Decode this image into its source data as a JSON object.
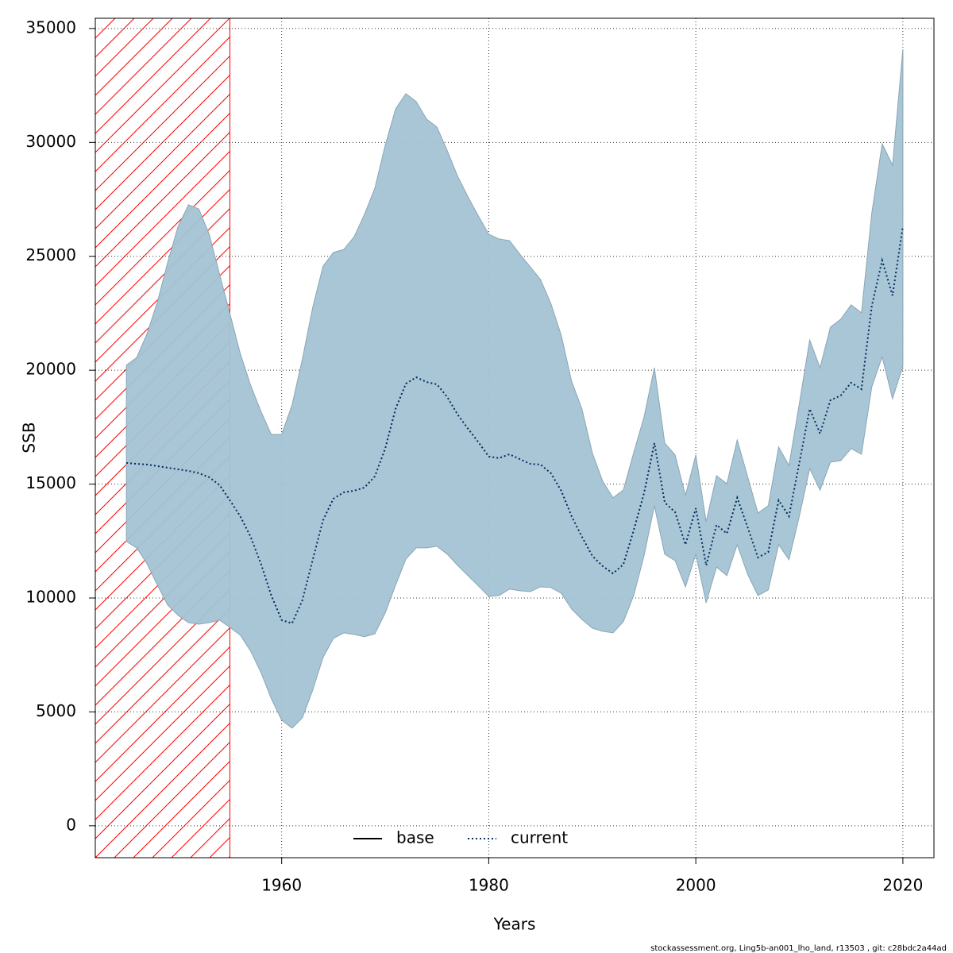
{
  "chart_data": {
    "type": "band-line",
    "xlabel": "Years",
    "ylabel": "SSB",
    "footer": "stockassessment.org, Ling5b-an001_lho_land, r13503 , git: c28bdc2a44ad",
    "x": [
      1945,
      1946,
      1947,
      1948,
      1949,
      1950,
      1951,
      1952,
      1953,
      1954,
      1955,
      1956,
      1957,
      1958,
      1959,
      1960,
      1961,
      1962,
      1963,
      1964,
      1965,
      1966,
      1967,
      1968,
      1969,
      1970,
      1971,
      1972,
      1973,
      1974,
      1975,
      1976,
      1977,
      1978,
      1979,
      1980,
      1981,
      1982,
      1983,
      1984,
      1985,
      1986,
      1987,
      1988,
      1989,
      1990,
      1991,
      1992,
      1993,
      1994,
      1995,
      1996,
      1997,
      1998,
      1999,
      2000,
      2001,
      2002,
      2003,
      2004,
      2005,
      2006,
      2007,
      2008,
      2009,
      2010,
      2011,
      2012,
      2013,
      2014,
      2015,
      2016,
      2017,
      2018,
      2019,
      2020
    ],
    "series": [
      {
        "name": "current",
        "color": "#002b5c",
        "dash": "dotted",
        "values": [
          15930,
          15890,
          15860,
          15790,
          15720,
          15650,
          15580,
          15480,
          15300,
          14960,
          14290,
          13590,
          12690,
          11500,
          10110,
          9030,
          8890,
          9900,
          11680,
          13420,
          14360,
          14640,
          14710,
          14850,
          15340,
          16560,
          18300,
          19410,
          19690,
          19480,
          19380,
          18820,
          18050,
          17430,
          16840,
          16210,
          16140,
          16310,
          16100,
          15890,
          15860,
          15480,
          14710,
          13590,
          12690,
          11850,
          11400,
          11080,
          11470,
          12970,
          14600,
          16800,
          14190,
          13770,
          12340,
          13940,
          11430,
          13210,
          12830,
          14400,
          13110,
          11780,
          12020,
          14290,
          13590,
          15930,
          18300,
          17220,
          18680,
          18890,
          19450,
          19170,
          22830,
          24820,
          23280,
          26320
        ]
      }
    ],
    "band": {
      "color": "#a3c3d4",
      "upper": [
        20220,
        20560,
        21610,
        23000,
        24750,
        26320,
        27260,
        27080,
        25970,
        24220,
        22480,
        20740,
        19340,
        18190,
        17180,
        17180,
        18470,
        20490,
        22760,
        24570,
        25170,
        25300,
        25860,
        26840,
        27990,
        29870,
        31470,
        32140,
        31790,
        31020,
        30670,
        29630,
        28510,
        27610,
        26770,
        25970,
        25760,
        25690,
        25100,
        24540,
        23980,
        22930,
        21540,
        19520,
        18300,
        16380,
        15130,
        14400,
        14740,
        16380,
        17950,
        20110,
        16800,
        16280,
        14500,
        16280,
        13350,
        15370,
        15020,
        16940,
        15340,
        13730,
        14050,
        16630,
        15820,
        18540,
        21330,
        20110,
        21890,
        22240,
        22870,
        22520,
        26910,
        29940,
        29000,
        34090
      ],
      "lower": [
        12480,
        12200,
        11500,
        10560,
        9690,
        9240,
        8920,
        8850,
        8920,
        9030,
        8710,
        8370,
        7670,
        6730,
        5580,
        4640,
        4290,
        4740,
        5960,
        7390,
        8230,
        8470,
        8400,
        8300,
        8430,
        9340,
        10560,
        11710,
        12200,
        12200,
        12270,
        11920,
        11430,
        10980,
        10530,
        10070,
        10110,
        10390,
        10320,
        10280,
        10490,
        10460,
        10210,
        9520,
        9060,
        8680,
        8540,
        8470,
        8960,
        10110,
        11850,
        14050,
        11920,
        11640,
        10490,
        11920,
        9790,
        11360,
        10980,
        12340,
        11050,
        10110,
        10350,
        12340,
        11680,
        13590,
        15680,
        14740,
        15960,
        16030,
        16560,
        16310,
        19270,
        20590,
        18750,
        20180
      ]
    },
    "legend": [
      {
        "name": "base",
        "color": "#000000",
        "dash": "solid"
      },
      {
        "name": "current",
        "color": "#002b5c",
        "dash": "dotted"
      }
    ],
    "hatch_x": [
      1942,
      1955
    ],
    "hatch_color": "#ff0000",
    "xlim": [
      1942,
      2023
    ],
    "ylim": [
      -1400,
      35450
    ],
    "xticks": [
      1960,
      1980,
      2000,
      2020
    ],
    "yticks": [
      0,
      5000,
      10000,
      15000,
      20000,
      25000,
      30000,
      35000
    ],
    "grid": true
  }
}
